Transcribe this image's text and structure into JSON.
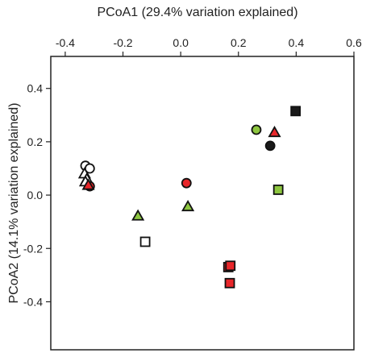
{
  "chart_data": {
    "type": "scatter",
    "title": "",
    "xlabel": "PCoA1 (29.4% variation explained)",
    "ylabel": "PCoA2 (14.1% variation explained)",
    "x_axis_position": "top",
    "xlim": [
      -0.45,
      0.6
    ],
    "ylim": [
      -0.58,
      0.52
    ],
    "xticks": [
      -0.4,
      -0.2,
      0.0,
      0.2,
      0.4,
      0.6
    ],
    "xtick_labels": [
      "-0.4",
      "-0.2",
      "0.0",
      "0.2",
      "0.4",
      "0.6"
    ],
    "yticks": [
      0.4,
      0.2,
      0.0,
      -0.2,
      -0.4
    ],
    "ytick_labels": [
      "0.4",
      "0.2",
      "0.0",
      "-0.2",
      "-0.4"
    ],
    "grid": false,
    "legend": "none",
    "colors": {
      "white": "#ffffff",
      "red": "#e8262a",
      "green": "#8dc63f",
      "black": "#1a1a1a",
      "outline": "#111111"
    },
    "points": [
      {
        "x": -0.33,
        "y": 0.11,
        "shape": "circle",
        "color": "white"
      },
      {
        "x": -0.315,
        "y": 0.1,
        "shape": "circle",
        "color": "white"
      },
      {
        "x": -0.333,
        "y": 0.08,
        "shape": "triangle",
        "color": "white"
      },
      {
        "x": -0.325,
        "y": 0.06,
        "shape": "triangle",
        "color": "white"
      },
      {
        "x": -0.33,
        "y": 0.05,
        "shape": "triangle",
        "color": "white"
      },
      {
        "x": -0.315,
        "y": 0.033,
        "shape": "circle",
        "color": "red"
      },
      {
        "x": -0.32,
        "y": 0.037,
        "shape": "triangle",
        "color": "red"
      },
      {
        "x": 0.02,
        "y": 0.045,
        "shape": "circle",
        "color": "red"
      },
      {
        "x": -0.148,
        "y": -0.078,
        "shape": "triangle",
        "color": "green"
      },
      {
        "x": 0.025,
        "y": -0.043,
        "shape": "triangle",
        "color": "green"
      },
      {
        "x": -0.123,
        "y": -0.175,
        "shape": "square",
        "color": "white"
      },
      {
        "x": 0.165,
        "y": -0.27,
        "shape": "square",
        "color": "red"
      },
      {
        "x": 0.172,
        "y": -0.265,
        "shape": "square",
        "color": "red"
      },
      {
        "x": 0.17,
        "y": -0.33,
        "shape": "square",
        "color": "red"
      },
      {
        "x": 0.262,
        "y": 0.245,
        "shape": "circle",
        "color": "green"
      },
      {
        "x": 0.31,
        "y": 0.185,
        "shape": "circle",
        "color": "black"
      },
      {
        "x": 0.325,
        "y": 0.235,
        "shape": "triangle",
        "color": "red"
      },
      {
        "x": 0.338,
        "y": 0.02,
        "shape": "square",
        "color": "green"
      },
      {
        "x": 0.398,
        "y": 0.315,
        "shape": "square",
        "color": "black"
      }
    ]
  }
}
